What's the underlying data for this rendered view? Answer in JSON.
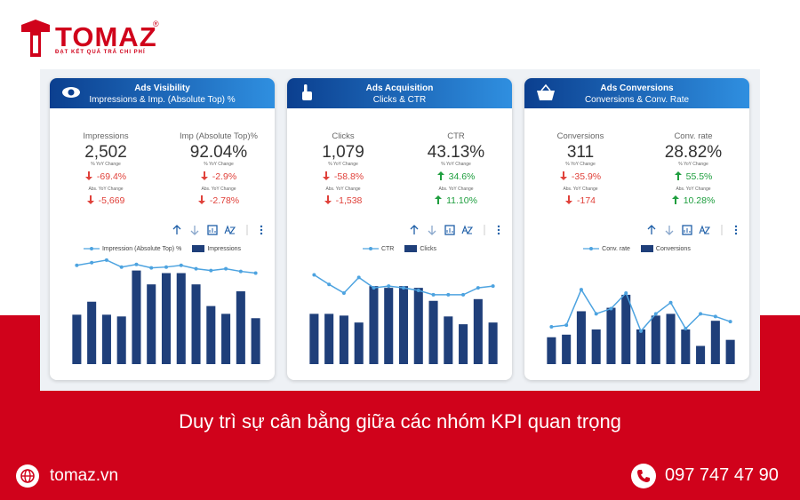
{
  "brand": {
    "name": "TOMAZ",
    "mark": "®",
    "tagline": "ĐẠT KẾT QUẢ TRẢ CHI PHÍ"
  },
  "cards": [
    {
      "title": "Ads Visibility",
      "subtitle": "Impressions & Imp. (Absolute Top) %",
      "metrics": [
        {
          "label": "Impressions",
          "value": "2,502",
          "yoy_label": "% YoY Change",
          "yoy": "-69.4%",
          "abs_label": "Abs. YoY Change",
          "abs": "-5,669",
          "trend": "down"
        },
        {
          "label": "Imp (Absolute Top)%",
          "value": "92.04%",
          "yoy_label": "% YoY Change",
          "yoy": "-2.9%",
          "abs_label": "Abs. YoY Change",
          "abs": "-2.78%",
          "trend": "down"
        }
      ],
      "chart": {
        "line_name": "Impression (Absolute Top) %",
        "bar_name": "Impressions",
        "line_color": "#4da3e0",
        "bar_color": "#1f3f7a",
        "ylim": [
          0,
          125
        ],
        "bars": [
          57,
          72,
          57,
          55,
          108,
          92,
          105,
          105,
          92,
          67,
          58,
          84,
          53
        ],
        "line": [
          114,
          117,
          120,
          112,
          115,
          111,
          112,
          114,
          110,
          108,
          110,
          107,
          105
        ]
      }
    },
    {
      "title": "Ads Acquisition",
      "subtitle": "Clicks & CTR",
      "metrics": [
        {
          "label": "Clicks",
          "value": "1,079",
          "yoy_label": "% YoY Change",
          "yoy": "-58.8%",
          "abs_label": "Abs. YoY Change",
          "abs": "-1,538",
          "trend": "down"
        },
        {
          "label": "CTR",
          "value": "43.13%",
          "yoy_label": "% YoY Change",
          "yoy": "34.6%",
          "abs_label": "Abs. YoY Change",
          "abs": "11.10%",
          "trend": "up"
        }
      ],
      "chart": {
        "line_name": "CTR",
        "bar_name": "Clicks",
        "line_color": "#4da3e0",
        "bar_color": "#1f3f7a",
        "ylim": [
          0,
          125
        ],
        "bars": [
          58,
          58,
          56,
          48,
          90,
          88,
          90,
          88,
          73,
          55,
          46,
          75,
          48
        ],
        "line": [
          103,
          92,
          82,
          100,
          88,
          90,
          88,
          85,
          80,
          80,
          80,
          88,
          90
        ]
      }
    },
    {
      "title": "Ads Conversions",
      "subtitle": "Conversions & Conv. Rate",
      "metrics": [
        {
          "label": "Conversions",
          "value": "311",
          "yoy_label": "% YoY Change",
          "yoy": "-35.9%",
          "abs_label": "Abs. YoY Change",
          "abs": "-174",
          "trend": "down"
        },
        {
          "label": "Conv. rate",
          "value": "28.82%",
          "yoy_label": "% YoY Change",
          "yoy": "55.5%",
          "abs_label": "Abs. YoY Change",
          "abs": "10.28%",
          "trend": "up"
        }
      ],
      "chart": {
        "line_name": "Conv. rate",
        "bar_name": "Conversions",
        "line_color": "#4da3e0",
        "bar_color": "#1f3f7a",
        "ylim": [
          0,
          125
        ],
        "bars": [
          31,
          34,
          61,
          40,
          65,
          80,
          40,
          56,
          58,
          40,
          21,
          50,
          28
        ],
        "line": [
          43,
          45,
          86,
          58,
          64,
          82,
          38,
          58,
          71,
          41,
          58,
          55,
          49
        ]
      }
    }
  ],
  "caption": "Duy trì sự cân bằng giữa các nhóm KPI quan trọng",
  "footer": {
    "website": "tomaz.vn",
    "phone": "097 747 47 90"
  }
}
